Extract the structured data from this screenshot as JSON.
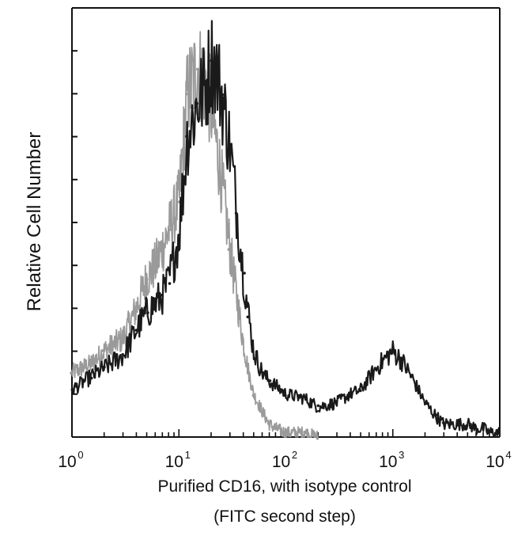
{
  "chart_data": {
    "type": "line",
    "ylabel": "Relative Cell Number",
    "xlabel": "Purified CD16, with isotype control",
    "xlabel_line2": "(FITC second step)",
    "x_scale": "log",
    "xlim": [
      1,
      10000
    ],
    "x_ticks": [
      {
        "base": "10",
        "exp": "0",
        "value": 1
      },
      {
        "base": "10",
        "exp": "1",
        "value": 10
      },
      {
        "base": "10",
        "exp": "2",
        "value": 100
      },
      {
        "base": "10",
        "exp": "3",
        "value": 1000
      },
      {
        "base": "10",
        "exp": "4",
        "value": 10000
      }
    ],
    "ylim": [
      0,
      100
    ],
    "grid": false,
    "series": [
      {
        "color": "#1a1a1a",
        "x": [
          1,
          1.5,
          2,
          3,
          4,
          5,
          6,
          7,
          8,
          10,
          12,
          15,
          18,
          20,
          22,
          25,
          30,
          35,
          40,
          45,
          50,
          60,
          70,
          80,
          100,
          150,
          200,
          300,
          400,
          500,
          700,
          900,
          1000,
          1200,
          1500,
          2000,
          2500,
          3000,
          4000,
          5000,
          6000,
          7000,
          8000,
          10000
        ],
        "y": [
          11,
          14,
          16,
          19,
          25,
          29,
          31,
          33,
          36,
          47,
          70,
          78,
          82,
          88,
          86,
          80,
          68,
          52,
          38,
          28,
          20,
          15,
          13,
          12,
          10,
          9,
          7,
          8,
          10,
          11,
          16,
          19,
          20,
          18,
          14,
          8,
          5,
          3,
          3,
          3,
          2,
          2,
          1,
          1
        ]
      },
      {
        "color": "#9a9a9a",
        "x": [
          1,
          1.5,
          2,
          3,
          4,
          5,
          6,
          7,
          8,
          10,
          12,
          15,
          18,
          20,
          22,
          25,
          30,
          35,
          40,
          45,
          50,
          60,
          70,
          80,
          100,
          150,
          200
        ],
        "y": [
          15,
          17,
          20,
          23,
          30,
          37,
          40,
          44,
          48,
          55,
          80,
          86,
          82,
          77,
          70,
          60,
          44,
          32,
          22,
          15,
          10,
          6,
          3,
          2,
          1,
          1,
          0
        ]
      }
    ]
  }
}
